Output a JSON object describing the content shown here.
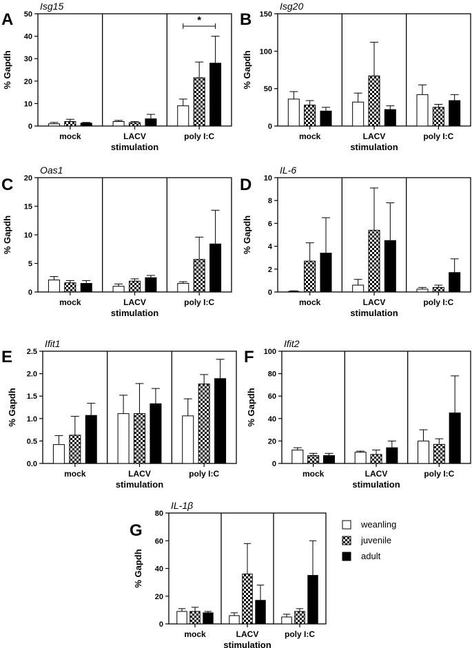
{
  "figure": {
    "ylabel": "% Gapdh",
    "xlabel": "stimulation",
    "groups": [
      "mock",
      "LACV",
      "poly I:C"
    ],
    "legend": [
      {
        "name": "weanling",
        "pattern": "white"
      },
      {
        "name": "juvenile",
        "pattern": "checker"
      },
      {
        "name": "adult",
        "pattern": "black"
      }
    ],
    "colors": {
      "black": "#000000",
      "white": "#ffffff"
    }
  },
  "chart_data": [
    {
      "type": "bar",
      "panel": "A",
      "title": "Isg15",
      "ylabel": "% Gapdh",
      "xlabel": "stimulation",
      "categories": [
        "mock",
        "LACV",
        "poly I:C"
      ],
      "ylim": [
        0,
        50
      ],
      "yticks": [
        "0",
        "10",
        "20",
        "30",
        "40",
        "50"
      ],
      "series": [
        {
          "name": "weanling",
          "values": [
            1.0,
            2.0,
            9.0
          ],
          "errors": [
            0.6,
            0.5,
            3.0
          ]
        },
        {
          "name": "juvenile",
          "values": [
            2.0,
            1.5,
            21.5
          ],
          "errors": [
            1.0,
            0.5,
            7.0
          ]
        },
        {
          "name": "adult",
          "values": [
            1.3,
            3.2,
            28.0
          ],
          "errors": [
            0.3,
            2.0,
            12.0
          ]
        }
      ],
      "significance": {
        "group": "poly I:C",
        "from": "weanling",
        "to": "adult",
        "label": "*"
      }
    },
    {
      "type": "bar",
      "panel": "B",
      "title": "Isg20",
      "ylabel": "% Gapdh",
      "xlabel": "stimulation",
      "categories": [
        "mock",
        "LACV",
        "poly I:C"
      ],
      "ylim": [
        0,
        150
      ],
      "yticks": [
        "0",
        "50",
        "100",
        "150"
      ],
      "series": [
        {
          "name": "weanling",
          "values": [
            36,
            32,
            42
          ],
          "errors": [
            10,
            12,
            13
          ]
        },
        {
          "name": "juvenile",
          "values": [
            28,
            67,
            25
          ],
          "errors": [
            6,
            45,
            4
          ]
        },
        {
          "name": "adult",
          "values": [
            20,
            22,
            34
          ],
          "errors": [
            5,
            5,
            8
          ]
        }
      ]
    },
    {
      "type": "bar",
      "panel": "C",
      "title": "Oas1",
      "ylabel": "% Gapdh",
      "xlabel": "stimulation",
      "categories": [
        "mock",
        "LACV",
        "poly I:C"
      ],
      "ylim": [
        0,
        20
      ],
      "yticks": [
        "0",
        "5",
        "10",
        "15",
        "20"
      ],
      "series": [
        {
          "name": "weanling",
          "values": [
            2.1,
            1.0,
            1.5
          ],
          "errors": [
            0.6,
            0.4,
            0.3
          ]
        },
        {
          "name": "juvenile",
          "values": [
            1.6,
            1.9,
            5.7
          ],
          "errors": [
            0.4,
            0.4,
            3.9
          ]
        },
        {
          "name": "adult",
          "values": [
            1.5,
            2.5,
            8.4
          ],
          "errors": [
            0.5,
            0.4,
            5.9
          ]
        }
      ]
    },
    {
      "type": "bar",
      "panel": "D",
      "title": "IL-6",
      "ylabel": "% Gapdh",
      "xlabel": "stimulation",
      "categories": [
        "mock",
        "LACV",
        "poly I:C"
      ],
      "ylim": [
        0,
        10
      ],
      "yticks": [
        "0",
        "2",
        "4",
        "6",
        "8",
        "10"
      ],
      "series": [
        {
          "name": "weanling",
          "values": [
            0.05,
            0.6,
            0.25
          ],
          "errors": [
            0.05,
            0.5,
            0.15
          ]
        },
        {
          "name": "juvenile",
          "values": [
            2.7,
            5.4,
            0.4
          ],
          "errors": [
            1.6,
            3.7,
            0.2
          ]
        },
        {
          "name": "adult",
          "values": [
            3.4,
            4.5,
            1.7
          ],
          "errors": [
            3.1,
            3.3,
            1.2
          ]
        }
      ]
    },
    {
      "type": "bar",
      "panel": "E",
      "title": "Ifit1",
      "ylabel": "% Gapdh",
      "xlabel": "stimulation",
      "categories": [
        "mock",
        "LACV",
        "poly I:C"
      ],
      "ylim": [
        0,
        2.5
      ],
      "yticks": [
        "0.0",
        "0.5",
        "1.0",
        "1.5",
        "2.0",
        "2.5"
      ],
      "series": [
        {
          "name": "weanling",
          "values": [
            0.42,
            1.11,
            1.06
          ],
          "errors": [
            0.2,
            0.41,
            0.38
          ]
        },
        {
          "name": "juvenile",
          "values": [
            0.63,
            1.11,
            1.77
          ],
          "errors": [
            0.42,
            0.67,
            0.21
          ]
        },
        {
          "name": "adult",
          "values": [
            1.07,
            1.33,
            1.89
          ],
          "errors": [
            0.27,
            0.34,
            0.43
          ]
        }
      ]
    },
    {
      "type": "bar",
      "panel": "F",
      "title": "Ifit2",
      "ylabel": "% Gapdh",
      "xlabel": "stimulation",
      "categories": [
        "mock",
        "LACV",
        "poly I:C"
      ],
      "ylim": [
        0,
        100
      ],
      "yticks": [
        "0",
        "20",
        "40",
        "60",
        "80",
        "100"
      ],
      "series": [
        {
          "name": "weanling",
          "values": [
            12,
            10,
            20
          ],
          "errors": [
            2,
            1,
            10
          ]
        },
        {
          "name": "juvenile",
          "values": [
            7,
            8,
            17
          ],
          "errors": [
            2,
            4,
            5
          ]
        },
        {
          "name": "adult",
          "values": [
            7,
            14,
            45
          ],
          "errors": [
            2,
            6,
            33
          ]
        }
      ]
    },
    {
      "type": "bar",
      "panel": "G",
      "title": "IL-1β",
      "ylabel": "% Gapdh",
      "xlabel": "stimulation",
      "categories": [
        "mock",
        "LACV",
        "poly I:C"
      ],
      "ylim": [
        0,
        80
      ],
      "yticks": [
        "0",
        "20",
        "40",
        "60",
        "80"
      ],
      "series": [
        {
          "name": "weanling",
          "values": [
            9,
            6,
            5
          ],
          "errors": [
            2,
            2,
            2
          ]
        },
        {
          "name": "juvenile",
          "values": [
            9,
            36,
            9
          ],
          "errors": [
            3,
            22,
            2
          ]
        },
        {
          "name": "adult",
          "values": [
            8,
            17,
            35
          ],
          "errors": [
            1,
            11,
            25
          ]
        }
      ]
    }
  ]
}
